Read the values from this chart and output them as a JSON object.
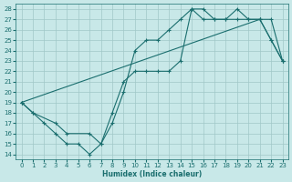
{
  "xlabel": "Humidex (Indice chaleur)",
  "background_color": "#c8e8e8",
  "grid_color": "#a0c8c8",
  "line_color": "#1a6e6e",
  "xlim": [
    -0.5,
    23.5
  ],
  "ylim": [
    13.5,
    28.5
  ],
  "xticks": [
    0,
    1,
    2,
    3,
    4,
    5,
    6,
    7,
    8,
    9,
    10,
    11,
    12,
    13,
    14,
    15,
    16,
    17,
    18,
    19,
    20,
    21,
    22,
    23
  ],
  "yticks": [
    14,
    15,
    16,
    17,
    18,
    19,
    20,
    21,
    22,
    23,
    24,
    25,
    26,
    27,
    28
  ],
  "line1_x": [
    0,
    1,
    2,
    3,
    4,
    5,
    6,
    7,
    8,
    9,
    10,
    11,
    12,
    13,
    14,
    15,
    16,
    17,
    18,
    19,
    20,
    21,
    22,
    23
  ],
  "line1_y": [
    19,
    18,
    17,
    16,
    15,
    15,
    14,
    15,
    17,
    20,
    24,
    25,
    25,
    26,
    27,
    28,
    28,
    27,
    27,
    27,
    27,
    27,
    25,
    23
  ],
  "line2_x": [
    0,
    21,
    22,
    23
  ],
  "line2_y": [
    19,
    27,
    25,
    23
  ],
  "line3_x": [
    0,
    1,
    3,
    4,
    6,
    7,
    8,
    9,
    10,
    11,
    12,
    13,
    14,
    15,
    16,
    17,
    18,
    19,
    20,
    21,
    22,
    23
  ],
  "line3_y": [
    19,
    18,
    17,
    16,
    16,
    15,
    18,
    21,
    22,
    22,
    22,
    22,
    23,
    28,
    27,
    27,
    27,
    28,
    27,
    27,
    27,
    23
  ]
}
